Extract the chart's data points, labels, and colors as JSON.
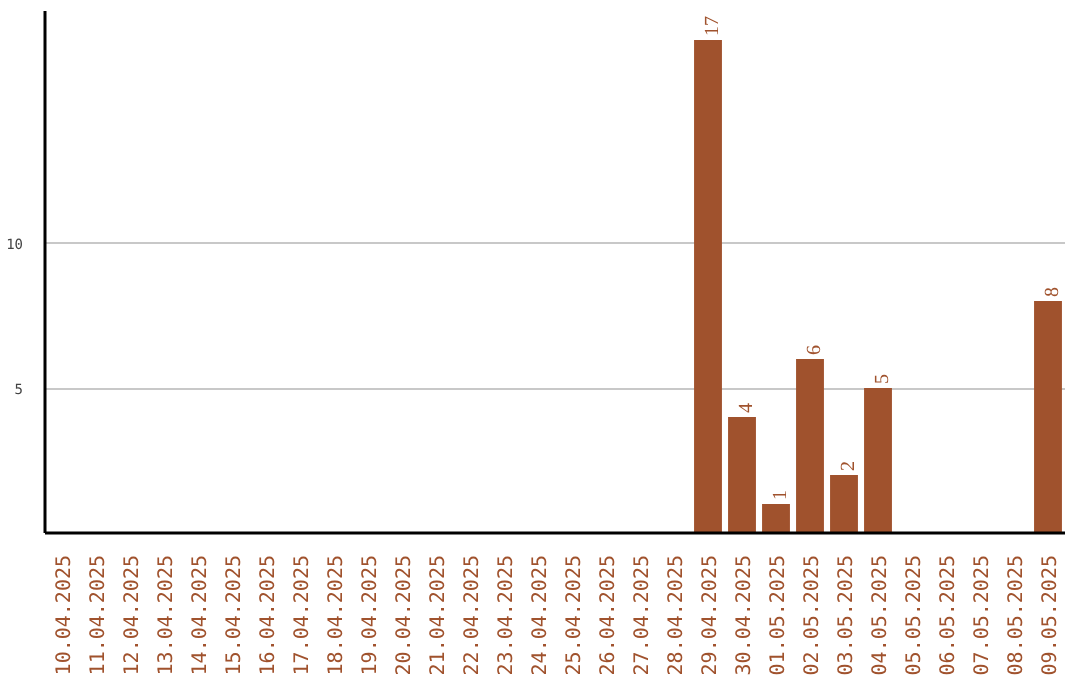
{
  "chart_data": {
    "type": "bar",
    "categories": [
      "10.04.2025",
      "11.04.2025",
      "12.04.2025",
      "13.04.2025",
      "14.04.2025",
      "15.04.2025",
      "16.04.2025",
      "17.04.2025",
      "18.04.2025",
      "19.04.2025",
      "20.04.2025",
      "21.04.2025",
      "22.04.2025",
      "23.04.2025",
      "24.04.2025",
      "25.04.2025",
      "26.04.2025",
      "27.04.2025",
      "28.04.2025",
      "29.04.2025",
      "30.04.2025",
      "01.05.2025",
      "02.05.2025",
      "03.05.2025",
      "04.05.2025",
      "05.05.2025",
      "06.05.2025",
      "07.05.2025",
      "08.05.2025",
      "09.05.2025"
    ],
    "values": [
      0,
      0,
      0,
      0,
      0,
      0,
      0,
      0,
      0,
      0,
      0,
      0,
      0,
      0,
      0,
      0,
      0,
      0,
      0,
      17,
      4,
      1,
      6,
      2,
      5,
      0,
      0,
      0,
      0,
      8
    ],
    "value_labels": [
      null,
      null,
      null,
      null,
      null,
      null,
      null,
      null,
      null,
      null,
      null,
      null,
      null,
      null,
      null,
      null,
      null,
      null,
      null,
      "17",
      "4",
      "1",
      "6",
      "2",
      "5",
      null,
      null,
      null,
      null,
      "8"
    ],
    "color": "#a0522d",
    "ylim": [
      0,
      18
    ],
    "yticks": [
      5,
      10
    ],
    "grid": "y"
  }
}
